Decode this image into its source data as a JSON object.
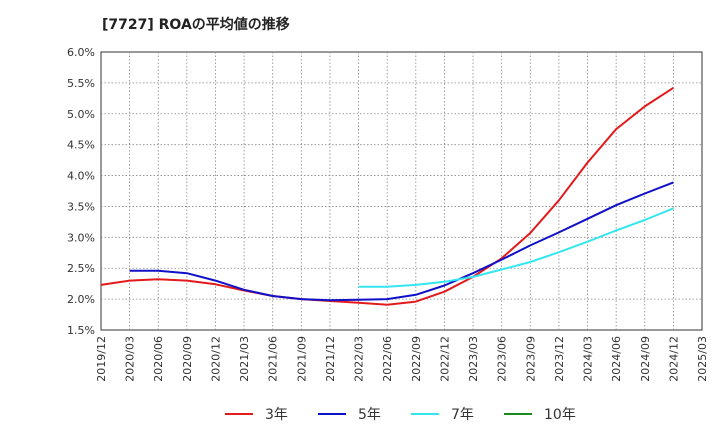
{
  "chart_data": {
    "type": "line",
    "title": "[7727]  ROAの平均値の推移",
    "xlabel": "",
    "ylabel": "",
    "x": [
      "2019/12",
      "2020/03",
      "2020/06",
      "2020/09",
      "2020/12",
      "2021/03",
      "2021/06",
      "2021/09",
      "2021/12",
      "2022/03",
      "2022/06",
      "2022/09",
      "2022/12",
      "2023/03",
      "2023/06",
      "2023/09",
      "2023/12",
      "2024/03",
      "2024/06",
      "2024/09",
      "2024/12",
      "2025/03"
    ],
    "ylim": [
      1.5,
      6.0
    ],
    "yticks": [
      "1.5%",
      "2.0%",
      "2.5%",
      "3.0%",
      "3.5%",
      "4.0%",
      "4.5%",
      "5.0%",
      "5.5%",
      "6.0%"
    ],
    "grid": true,
    "legend_position": "bottom",
    "series": [
      {
        "name": "3年",
        "color": "#e31a1c",
        "values": [
          2.23,
          2.3,
          2.32,
          2.3,
          2.24,
          2.14,
          2.05,
          2.0,
          1.97,
          1.94,
          1.91,
          1.96,
          2.12,
          2.36,
          2.66,
          3.07,
          3.6,
          4.21,
          4.75,
          5.12,
          5.42,
          null
        ]
      },
      {
        "name": "5年",
        "color": "#1010c8",
        "values": [
          null,
          2.46,
          2.46,
          2.42,
          2.3,
          2.15,
          2.05,
          2.0,
          1.98,
          1.99,
          2.0,
          2.07,
          2.22,
          2.42,
          2.64,
          2.87,
          3.08,
          3.3,
          3.52,
          3.71,
          3.89,
          null
        ]
      },
      {
        "name": "7年",
        "color": "#33e6f0",
        "values": [
          null,
          null,
          null,
          null,
          null,
          null,
          null,
          null,
          null,
          2.2,
          2.2,
          2.23,
          2.28,
          2.36,
          2.48,
          2.6,
          2.76,
          2.93,
          3.11,
          3.28,
          3.47,
          null
        ]
      },
      {
        "name": "10年",
        "color": "#1a8a1a",
        "values": [
          null,
          null,
          null,
          null,
          null,
          null,
          null,
          null,
          null,
          null,
          null,
          null,
          null,
          null,
          null,
          null,
          null,
          null,
          null,
          null,
          null,
          null
        ]
      }
    ]
  }
}
